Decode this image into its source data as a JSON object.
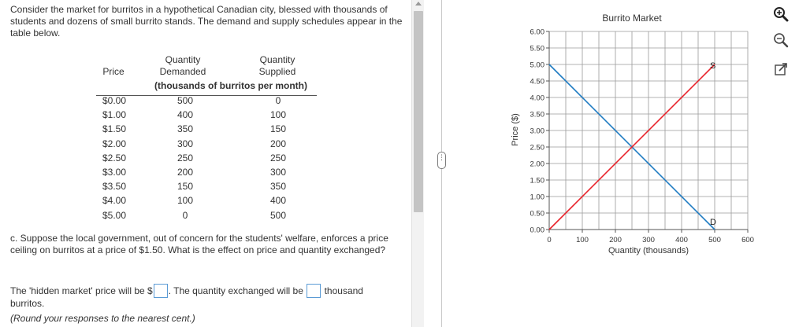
{
  "intro_text": "Consider the market for burritos in a hypothetical Canadian city, blessed with thousands of students and dozens of small burrito stands. The demand and supply schedules appear in the table below.",
  "table": {
    "col_price": "Price",
    "col_qd": "Quantity Demanded",
    "col_qs": "Quantity Supplied",
    "units": "(thousands of burritos per month)",
    "rows": [
      {
        "price": "$0.00",
        "qd": "500",
        "qs": "0"
      },
      {
        "price": "$1.00",
        "qd": "400",
        "qs": "100"
      },
      {
        "price": "$1.50",
        "qd": "350",
        "qs": "150"
      },
      {
        "price": "$2.00",
        "qd": "300",
        "qs": "200"
      },
      {
        "price": "$2.50",
        "qd": "250",
        "qs": "250"
      },
      {
        "price": "$3.00",
        "qd": "200",
        "qs": "300"
      },
      {
        "price": "$3.50",
        "qd": "150",
        "qs": "350"
      },
      {
        "price": "$4.00",
        "qd": "100",
        "qs": "400"
      },
      {
        "price": "$5.00",
        "qd": "0",
        "qs": "500"
      }
    ]
  },
  "question": "c. Suppose the local government, out of concern for the students' welfare, enforces a price ceiling on burritos at a price of $1.50. What is the effect on price and quantity exchanged?",
  "answer": {
    "prefix": "The 'hidden market' price will be $",
    "middle": ". The quantity exchanged will be",
    "suffix": "thousand",
    "line2": "burritos.",
    "note": "(Round your responses to the nearest cent.)",
    "price_value": "",
    "quantity_value": ""
  },
  "divider_handle": "⋮",
  "tools": [
    "zoom-in-icon",
    "zoom-out-icon",
    "open-new-window-icon"
  ],
  "colors": {
    "demand": "#1f7bc2",
    "supply": "#e8232b",
    "grid": "#9a9a9a",
    "input_border": "#5b9bd5"
  },
  "chart_data": {
    "type": "line",
    "title": "Burrito Market",
    "xlabel": "Quantity (thousands)",
    "ylabel": "Price ($)",
    "xlim": [
      0,
      600
    ],
    "ylim": [
      0,
      6
    ],
    "x_ticks": [
      0,
      100,
      200,
      300,
      400,
      500,
      600
    ],
    "x_tick_labels": [
      "0",
      "100",
      "200",
      "300",
      "400",
      "500",
      "600"
    ],
    "y_ticks": [
      0,
      0.5,
      1,
      1.5,
      2,
      2.5,
      3,
      3.5,
      4,
      4.5,
      5,
      5.5,
      6
    ],
    "y_tick_labels": [
      "0.00",
      "0.50",
      "1.00",
      "1.50",
      "2.00",
      "2.50",
      "3.00",
      "3.50",
      "4.00",
      "4.50",
      "5.00",
      "5.50",
      "6.00"
    ],
    "grid": true,
    "series": [
      {
        "name": "D",
        "color": "#1f7bc2",
        "x": [
          0,
          500
        ],
        "y": [
          5,
          0
        ]
      },
      {
        "name": "S",
        "color": "#e8232b",
        "x": [
          0,
          500
        ],
        "y": [
          0,
          5
        ]
      }
    ]
  }
}
